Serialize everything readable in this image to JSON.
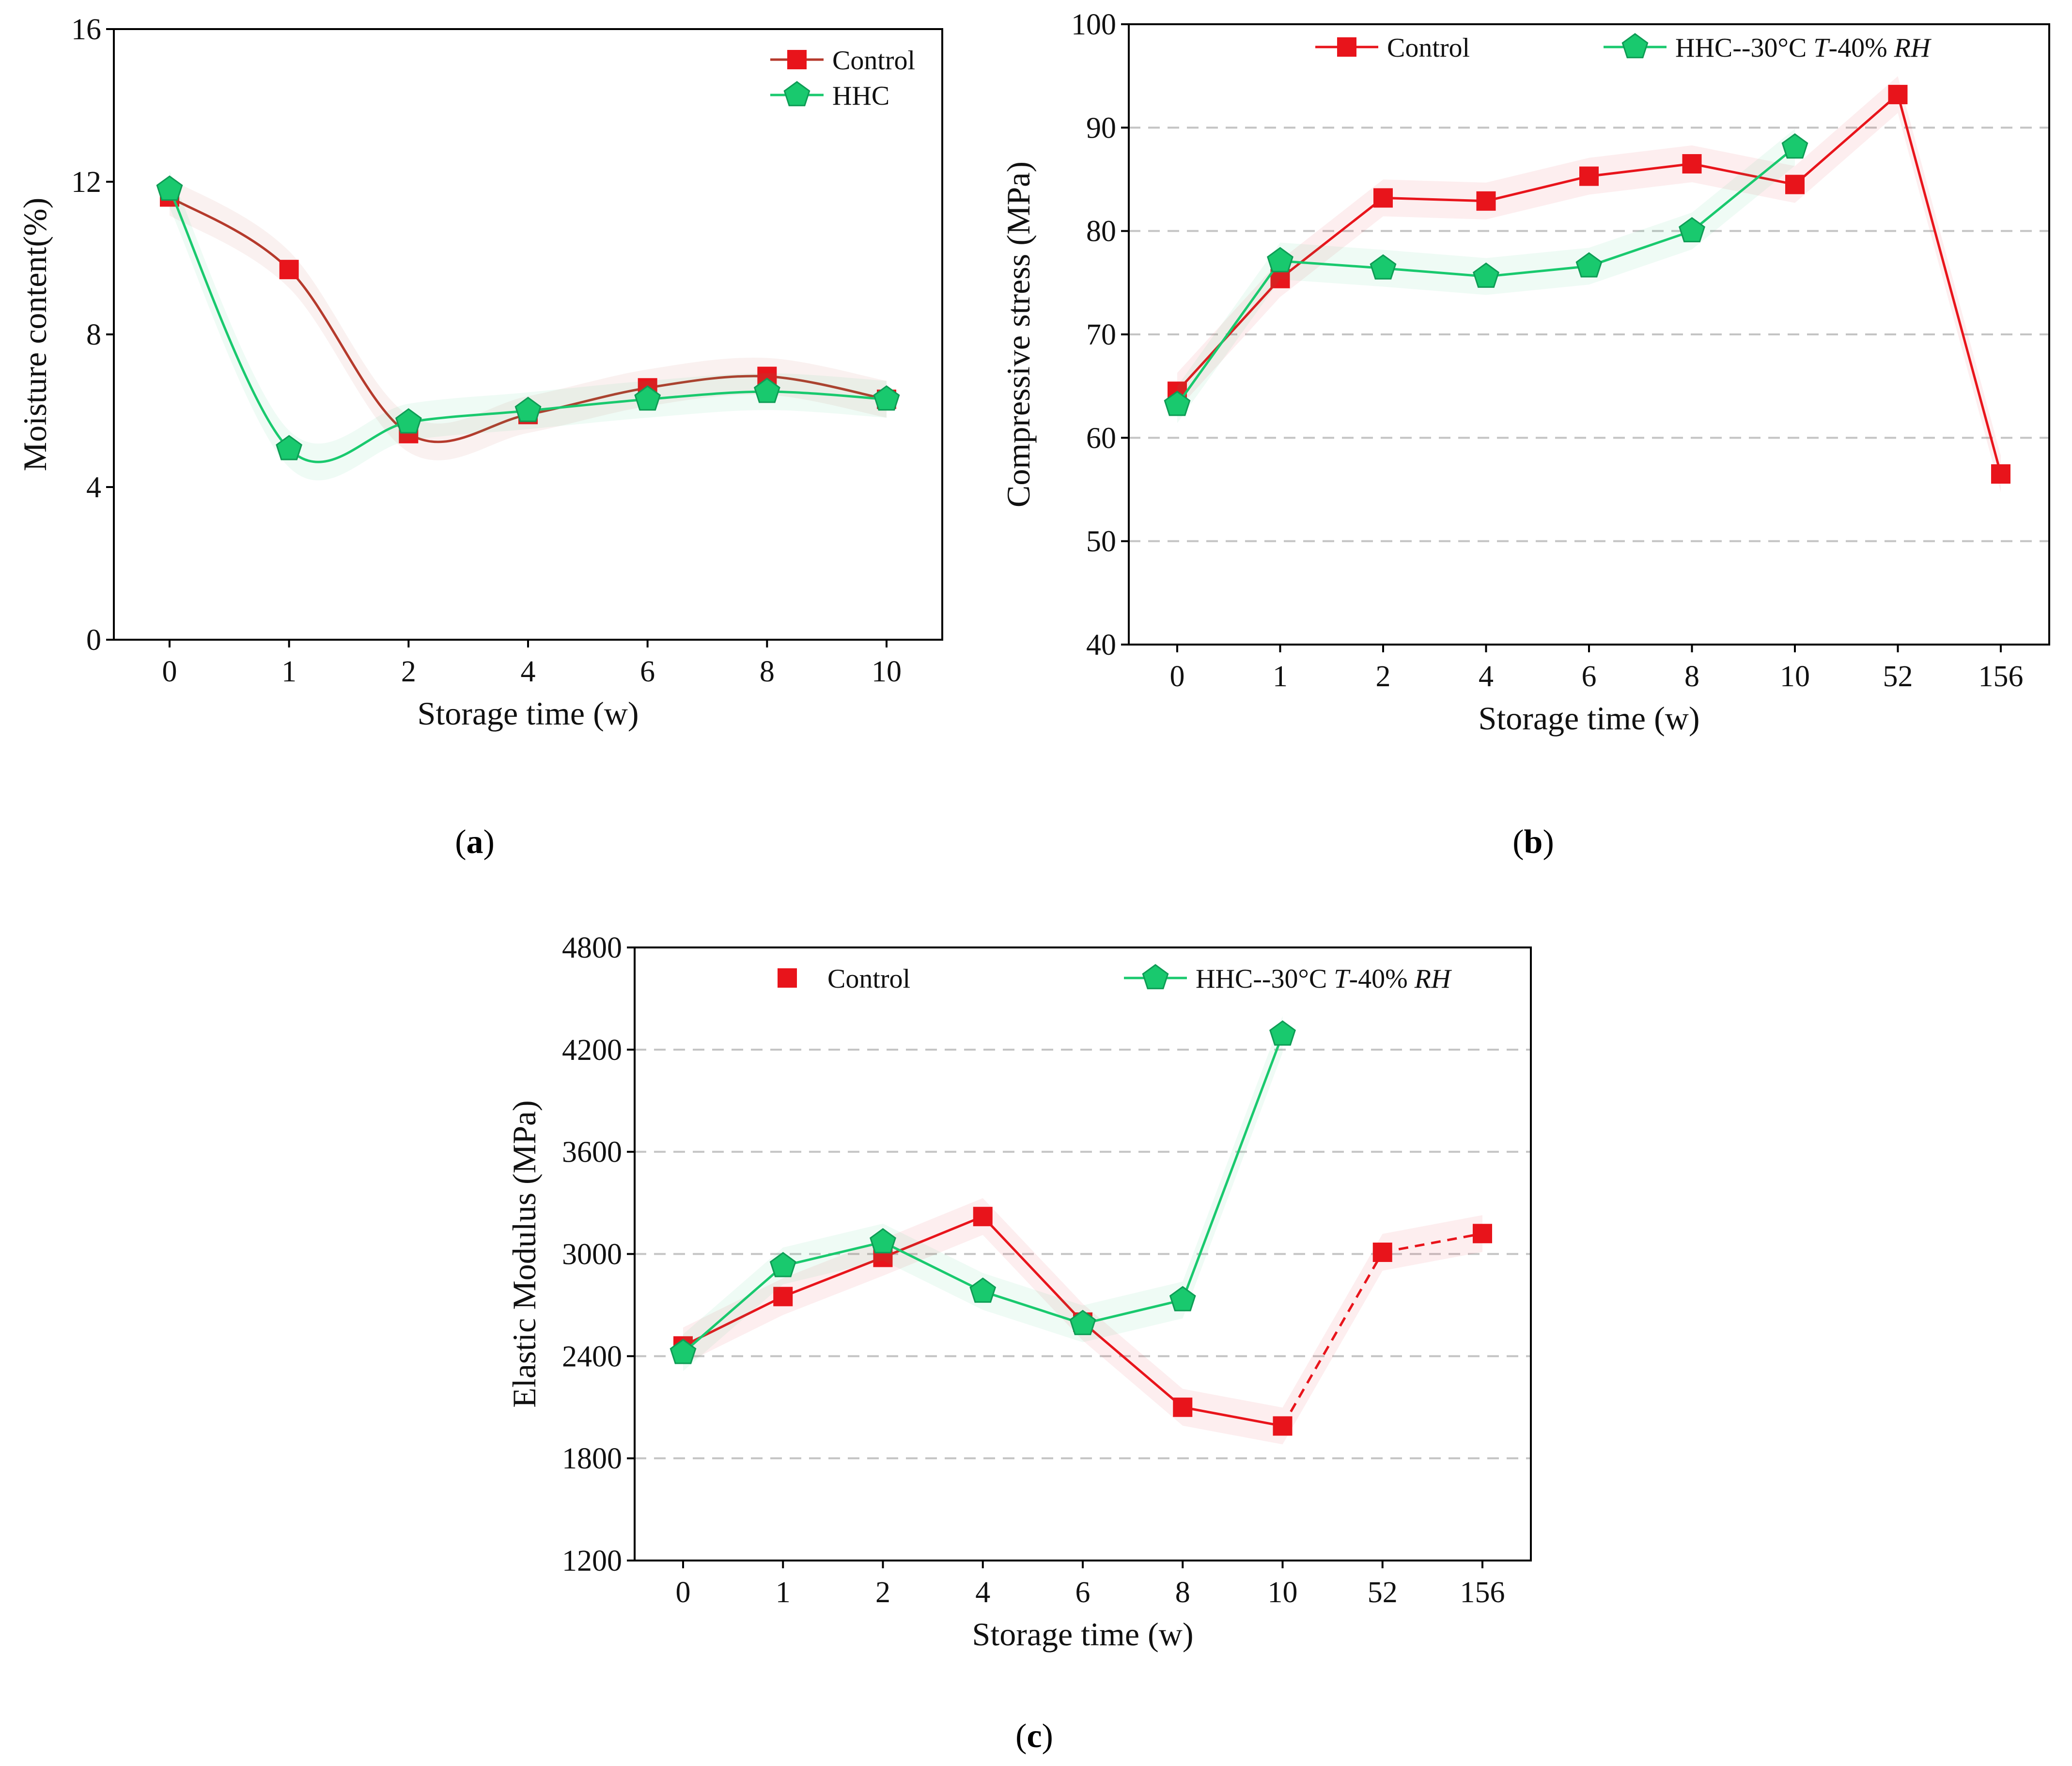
{
  "colors": {
    "control": "#e8141b",
    "control_a": "#b53a2c",
    "hhc": "#19c96e"
  },
  "panels": [
    {
      "label_open": "(",
      "label_letter": "a",
      "label_close": ")"
    },
    {
      "label_open": "(",
      "label_letter": "b",
      "label_close": ")"
    },
    {
      "label_open": "(",
      "label_letter": "c",
      "label_close": ")"
    }
  ],
  "chart_data": [
    {
      "type": "line",
      "title": "",
      "xlabel": "Storage time (w)",
      "ylabel": "Moisture content(%)",
      "categories": [
        "0",
        "1",
        "2",
        "4",
        "6",
        "8",
        "10"
      ],
      "ylim": [
        0,
        16
      ],
      "yticks": [
        0,
        4,
        8,
        12,
        16
      ],
      "grid": false,
      "smooth": true,
      "legend_position": "top-right",
      "series": [
        {
          "name": "Control",
          "marker": "square",
          "values": [
            11.6,
            9.7,
            5.4,
            5.9,
            6.6,
            6.9,
            6.3
          ]
        },
        {
          "name": "HHC",
          "marker": "pentagon",
          "values": [
            11.8,
            5.0,
            5.7,
            6.0,
            6.3,
            6.5,
            6.3
          ]
        }
      ]
    },
    {
      "type": "line",
      "title": "",
      "xlabel": "Storage time (w)",
      "ylabel": "Compressive stress (MPa)",
      "categories": [
        "0",
        "1",
        "2",
        "4",
        "6",
        "8",
        "10",
        "52",
        "156"
      ],
      "ylim": [
        40,
        100
      ],
      "yticks": [
        40,
        50,
        60,
        70,
        80,
        90,
        100
      ],
      "grid": true,
      "legend_position": "top",
      "series": [
        {
          "name": "Control",
          "marker": "square",
          "values": [
            64.5,
            75.4,
            83.2,
            82.9,
            85.3,
            86.5,
            84.5,
            93.2,
            56.5
          ]
        },
        {
          "name_prefix": "HHC--30°C ",
          "name_t": "T",
          "name_mid": "-40% ",
          "name_rh": "RH",
          "marker": "pentagon",
          "values": [
            63.2,
            77.1,
            76.4,
            75.6,
            76.6,
            80.0,
            88.1,
            null,
            null
          ]
        }
      ]
    },
    {
      "type": "line",
      "title": "",
      "xlabel": "Storage time (w)",
      "ylabel": "Elastic Modulus (MPa)",
      "categories": [
        "0",
        "1",
        "2",
        "4",
        "6",
        "8",
        "10",
        "52",
        "156"
      ],
      "ylim": [
        1200,
        4800
      ],
      "yticks": [
        1200,
        1800,
        2400,
        3000,
        3600,
        4200,
        4800
      ],
      "grid": true,
      "legend_position": "top",
      "series": [
        {
          "name": "Control",
          "marker": "square",
          "values": [
            2460,
            2750,
            2980,
            3220,
            2600,
            2100,
            1990,
            3010,
            3120
          ],
          "dashed_from_index": 6
        },
        {
          "name_prefix": "HHC--30°C ",
          "name_t": "T",
          "name_mid": "-40% ",
          "name_rh": "RH",
          "marker": "pentagon",
          "values": [
            2420,
            2930,
            3070,
            2780,
            2590,
            2730,
            4290,
            null,
            null
          ]
        }
      ]
    }
  ]
}
